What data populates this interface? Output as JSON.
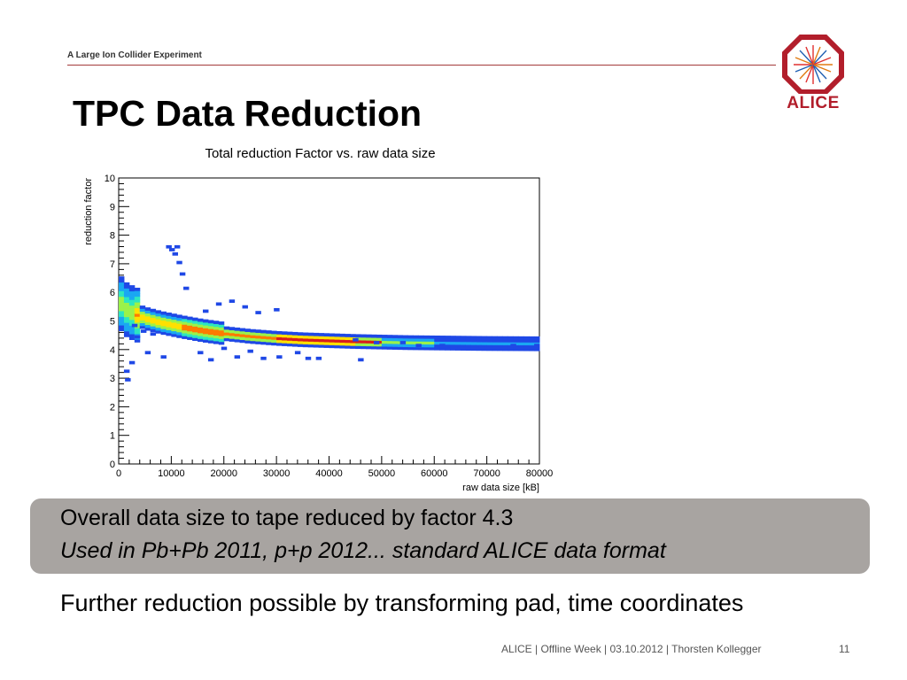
{
  "header": {
    "subtitle": "A Large Ion Collider Experiment",
    "logo_text": "ALICE"
  },
  "slide": {
    "title": "TPC Data Reduction"
  },
  "chart_data": {
    "type": "heatmap",
    "title": "Total reduction Factor vs. raw data size",
    "xlabel": "raw data size [kB]",
    "ylabel": "reduction factor",
    "xlim": [
      0,
      80000
    ],
    "ylim": [
      0,
      10
    ],
    "xticks": [
      0,
      10000,
      20000,
      30000,
      40000,
      50000,
      60000,
      70000,
      80000
    ],
    "yticks": [
      0,
      1,
      2,
      3,
      4,
      5,
      6,
      7,
      8,
      9,
      10
    ],
    "grid": false,
    "trend_curve": {
      "x": [
        300,
        1500,
        3000,
        5000,
        8000,
        12000,
        16000,
        20000,
        25000,
        30000,
        35000,
        40000,
        45000,
        50000,
        55000,
        60000,
        70000,
        80000
      ],
      "y": [
        5.6,
        5.35,
        5.2,
        5.05,
        4.9,
        4.75,
        4.62,
        4.52,
        4.42,
        4.35,
        4.3,
        4.27,
        4.24,
        4.22,
        4.2,
        4.19,
        4.17,
        4.16
      ]
    },
    "outliers": [
      {
        "x": 9000,
        "y": 7.55
      },
      {
        "x": 9600,
        "y": 7.45
      },
      {
        "x": 10200,
        "y": 7.3
      },
      {
        "x": 10600,
        "y": 7.55
      },
      {
        "x": 11000,
        "y": 7.0
      },
      {
        "x": 11600,
        "y": 6.6
      },
      {
        "x": 12300,
        "y": 6.1
      },
      {
        "x": 16000,
        "y": 5.3
      },
      {
        "x": 18500,
        "y": 5.55
      },
      {
        "x": 21000,
        "y": 5.65
      },
      {
        "x": 23500,
        "y": 5.45
      },
      {
        "x": 26000,
        "y": 5.25
      },
      {
        "x": 29500,
        "y": 5.35
      },
      {
        "x": 5000,
        "y": 3.85
      },
      {
        "x": 8000,
        "y": 3.7
      },
      {
        "x": 15000,
        "y": 3.85
      },
      {
        "x": 17000,
        "y": 3.6
      },
      {
        "x": 19500,
        "y": 4.0
      },
      {
        "x": 22000,
        "y": 3.7
      },
      {
        "x": 24500,
        "y": 3.9
      },
      {
        "x": 27000,
        "y": 3.65
      },
      {
        "x": 30000,
        "y": 3.7
      },
      {
        "x": 33500,
        "y": 3.85
      },
      {
        "x": 35500,
        "y": 3.65
      },
      {
        "x": 37500,
        "y": 3.65
      },
      {
        "x": 45500,
        "y": 3.6
      },
      {
        "x": 44500,
        "y": 4.3
      },
      {
        "x": 48500,
        "y": 4.2
      },
      {
        "x": 53500,
        "y": 4.2
      },
      {
        "x": 56500,
        "y": 4.1
      },
      {
        "x": 61000,
        "y": 4.1
      },
      {
        "x": 64500,
        "y": 4.05
      },
      {
        "x": 68500,
        "y": 4.05
      },
      {
        "x": 74500,
        "y": 4.1
      },
      {
        "x": 79000,
        "y": 4.1
      },
      {
        "x": 3000,
        "y": 4.4
      },
      {
        "x": 4200,
        "y": 4.6
      },
      {
        "x": 6000,
        "y": 4.5
      },
      {
        "x": 2000,
        "y": 3.5
      },
      {
        "x": 1000,
        "y": 3.2
      },
      {
        "x": 2500,
        "y": 4.8
      },
      {
        "x": 1200,
        "y": 2.9
      }
    ]
  },
  "callout": {
    "line1": "Overall data size to tape reduced by factor 4.3",
    "line2": "Used in Pb+Pb 2011, p+p 2012... standard ALICE data format"
  },
  "bullet": "Further reduction possible by transforming pad, time coordinates",
  "footer": {
    "text": "ALICE |  Offline Week | 03.10.2012 | Thorsten Kollegger",
    "page": "11"
  }
}
